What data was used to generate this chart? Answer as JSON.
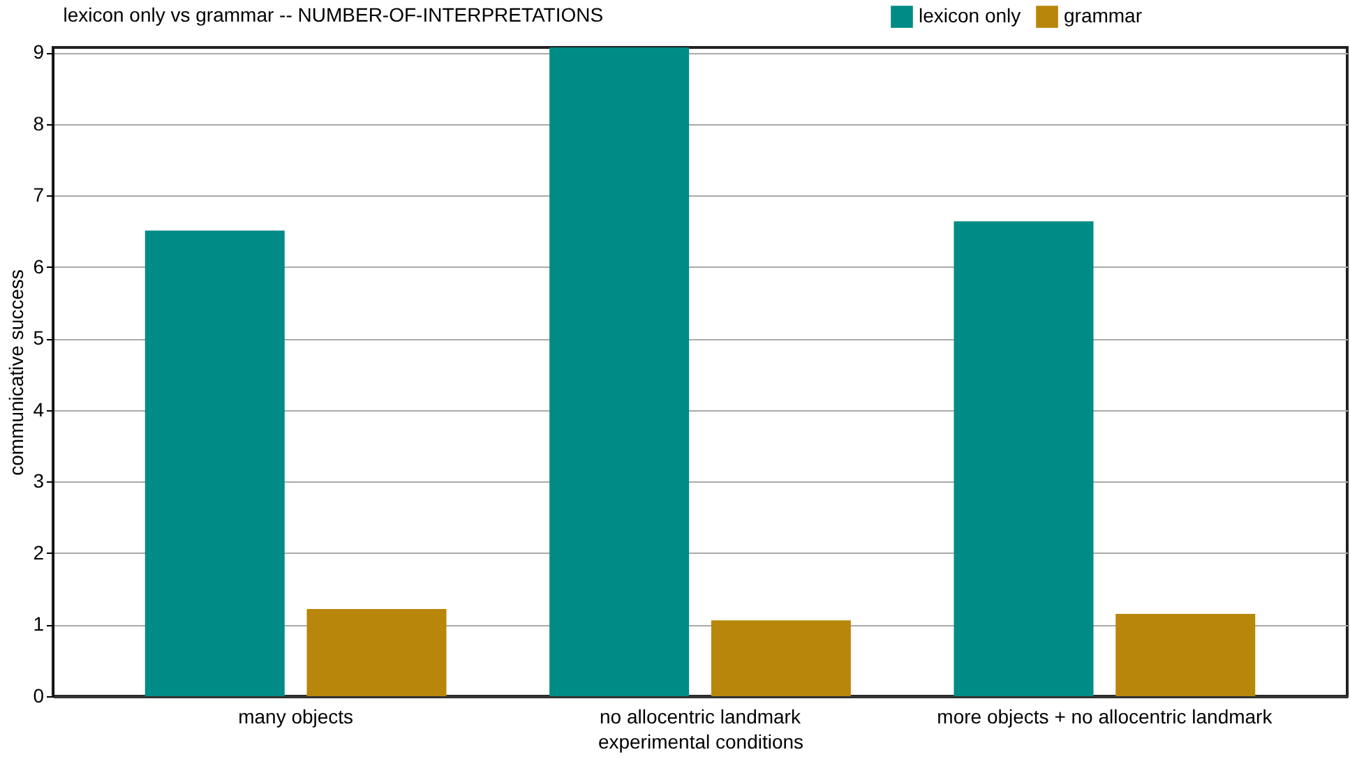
{
  "chart_data": {
    "type": "bar",
    "title": "lexicon only vs grammar -- NUMBER-OF-INTERPRETATIONS",
    "xlabel": "experimental conditions",
    "ylabel": "communicative success",
    "categories": [
      "many objects",
      "no allocentric landmark",
      "more objects + no allocentric landmark"
    ],
    "series": [
      {
        "name": "lexicon only",
        "color": "#008b87",
        "values": [
          6.51,
          9.07,
          6.64
        ]
      },
      {
        "name": "grammar",
        "color": "#b8860b",
        "values": [
          1.22,
          1.06,
          1.15
        ]
      }
    ],
    "ylim": [
      0,
      9.07
    ],
    "yticks": [
      0,
      1,
      2,
      3,
      4,
      5,
      6,
      7,
      8,
      9
    ],
    "grid": "y",
    "legend": "top right"
  }
}
